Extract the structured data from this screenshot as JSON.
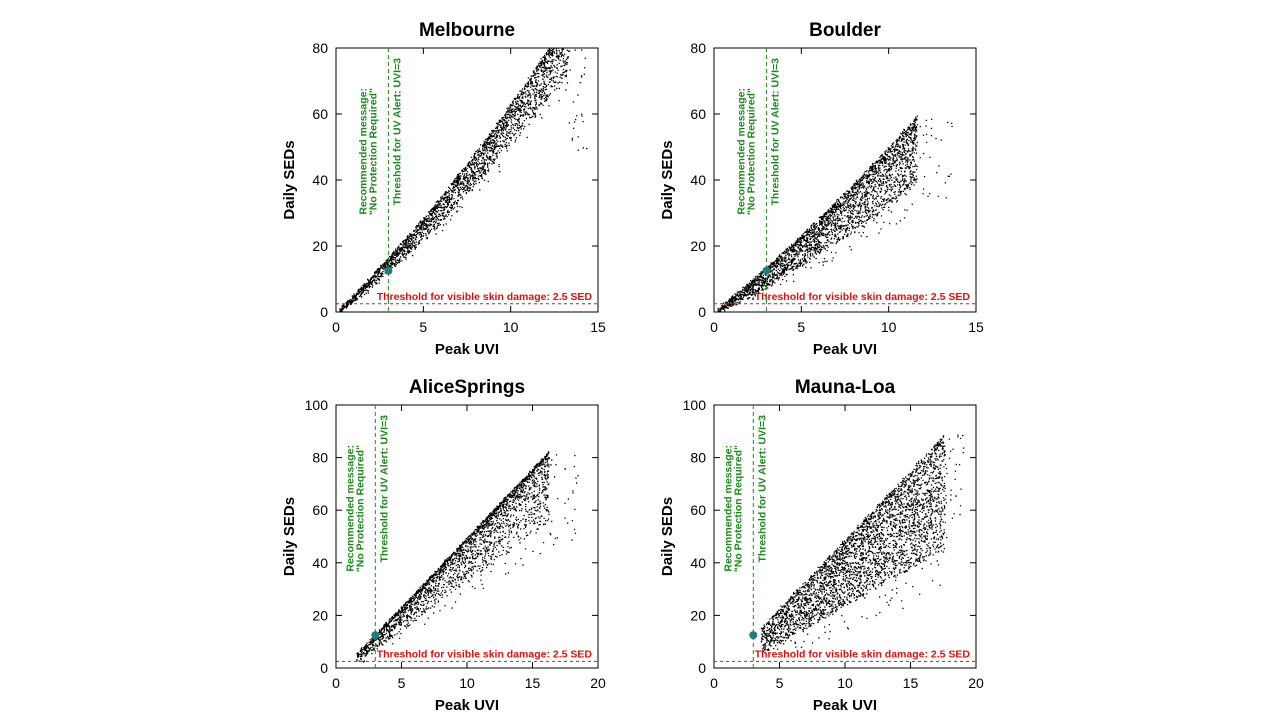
{
  "colors": {
    "points": "#000000",
    "uv_alert_line": "#1a8a1a",
    "damage_line": "#e01010",
    "marker": "#1f7f80"
  },
  "chart_data": [
    {
      "type": "scatter",
      "title": "Melbourne",
      "xlabel": "Peak UVI",
      "ylabel": "Daily SEDs",
      "xlim": [
        0,
        15
      ],
      "ylim": [
        0,
        80
      ],
      "xticks": [
        "0",
        "5",
        "10",
        "15"
      ],
      "yticks": [
        "0",
        "20",
        "40",
        "60",
        "80"
      ],
      "points_trend": {
        "lower_x": [
          0.3,
          13.2
        ],
        "lower_y": [
          0.3,
          67
        ],
        "upper_reach": [
          13.6,
          75
        ]
      },
      "highlight_point": {
        "x": 3,
        "y": 12.5
      },
      "uv_alert_x": 3,
      "damage_threshold_y": 2.5,
      "annotations": {
        "message_line1": "Recommended message:",
        "message_line2": "\"No Protection Required\"",
        "uv_alert": "Threshold for UV Alert: UVI=3",
        "damage": "Threshold for visible skin damage: 2.5 SED"
      }
    },
    {
      "type": "scatter",
      "title": "Boulder",
      "xlabel": "Peak UVI",
      "ylabel": "Daily SEDs",
      "xlim": [
        0,
        15
      ],
      "ylim": [
        0,
        80
      ],
      "xticks": [
        "0",
        "5",
        "10",
        "15"
      ],
      "yticks": [
        "0",
        "20",
        "40",
        "60",
        "80"
      ],
      "highlight_point": {
        "x": 3,
        "y": 12.5
      },
      "uv_alert_x": 3,
      "damage_threshold_y": 2.5,
      "annotations": {
        "message_line1": "Recommended message:",
        "message_line2": "\"No Protection Required\"",
        "uv_alert": "Threshold for UV Alert: UVI=3",
        "damage": "Threshold for visible skin damage: 2.5 SED"
      }
    },
    {
      "type": "scatter",
      "title": "AliceSprings",
      "xlabel": "Peak UVI",
      "ylabel": "Daily SEDs",
      "xlim": [
        0,
        20
      ],
      "ylim": [
        0,
        100
      ],
      "xticks": [
        "0",
        "5",
        "10",
        "15",
        "20"
      ],
      "yticks": [
        "0",
        "20",
        "40",
        "60",
        "80",
        "100"
      ],
      "highlight_point": {
        "x": 3,
        "y": 12.5
      },
      "uv_alert_x": 3,
      "damage_threshold_y": 2.5,
      "annotations": {
        "message_line1": "Recommended message:",
        "message_line2": "\"No Protection Required\"",
        "uv_alert": "Threshold for UV Alert: UVI=3",
        "damage": "Threshold for visible skin damage: 2.5 SED"
      }
    },
    {
      "type": "scatter",
      "title": "Mauna-Loa",
      "xlabel": "Peak UVI",
      "ylabel": "Daily SEDs",
      "xlim": [
        0,
        20
      ],
      "ylim": [
        0,
        100
      ],
      "xticks": [
        "0",
        "5",
        "10",
        "15",
        "20"
      ],
      "yticks": [
        "0",
        "20",
        "40",
        "60",
        "80",
        "100"
      ],
      "highlight_point": {
        "x": 3,
        "y": 12.5
      },
      "uv_alert_x": 3,
      "damage_threshold_y": 2.5,
      "annotations": {
        "message_line1": "Recommended message:",
        "message_line2": "\"No Protection Required\"",
        "uv_alert": "Threshold for UV Alert: UVI=3",
        "damage": "Threshold for visible skin damage: 2.5 SED"
      }
    }
  ]
}
